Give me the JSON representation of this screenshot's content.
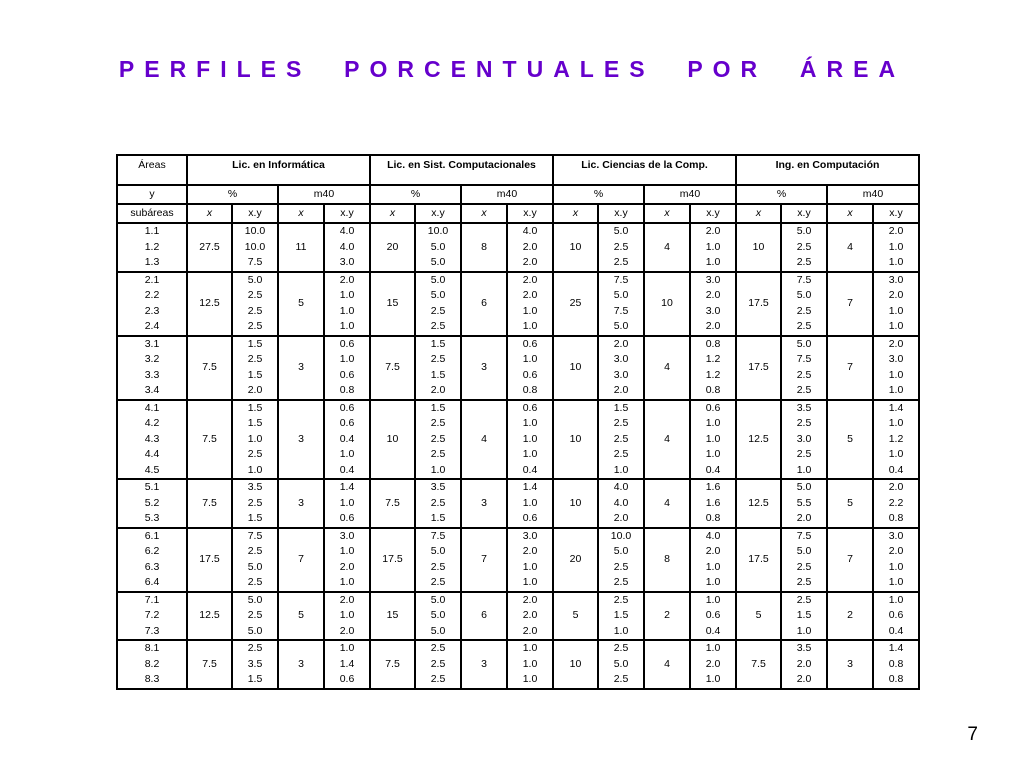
{
  "title": "PERFILES  PORCENTUALES  POR  ÁREA",
  "page_number": "7",
  "table": {
    "corner": [
      "Áreas",
      "y",
      "subáreas"
    ],
    "programs": [
      "Lic. en Informática",
      "Lic. en Sist. Computacionales",
      "Lic. Ciencias de la Comp.",
      "Ing. en Computación"
    ],
    "sub_headers": [
      "%",
      "m40"
    ],
    "column_labels": [
      "x",
      "x.y"
    ],
    "groups": [
      {
        "subareas": [
          "1.1",
          "1.2",
          "1.3"
        ],
        "programs": [
          {
            "pct_x": "27.5",
            "pct_xy": [
              "10.0",
              "10.0",
              "7.5"
            ],
            "m40_x": "11",
            "m40_xy": [
              "4.0",
              "4.0",
              "3.0"
            ]
          },
          {
            "pct_x": "20",
            "pct_xy": [
              "10.0",
              "5.0",
              "5.0"
            ],
            "m40_x": "8",
            "m40_xy": [
              "4.0",
              "2.0",
              "2.0"
            ]
          },
          {
            "pct_x": "10",
            "pct_xy": [
              "5.0",
              "2.5",
              "2.5"
            ],
            "m40_x": "4",
            "m40_xy": [
              "2.0",
              "1.0",
              "1.0"
            ]
          },
          {
            "pct_x": "10",
            "pct_xy": [
              "5.0",
              "2.5",
              "2.5"
            ],
            "m40_x": "4",
            "m40_xy": [
              "2.0",
              "1.0",
              "1.0"
            ]
          }
        ]
      },
      {
        "subareas": [
          "2.1",
          "2.2",
          "2.3",
          "2.4"
        ],
        "programs": [
          {
            "pct_x": "12.5",
            "pct_xy": [
              "5.0",
              "2.5",
              "2.5",
              "2.5"
            ],
            "m40_x": "5",
            "m40_xy": [
              "2.0",
              "1.0",
              "1.0",
              "1.0"
            ]
          },
          {
            "pct_x": "15",
            "pct_xy": [
              "5.0",
              "5.0",
              "2.5",
              "2.5"
            ],
            "m40_x": "6",
            "m40_xy": [
              "2.0",
              "2.0",
              "1.0",
              "1.0"
            ]
          },
          {
            "pct_x": "25",
            "pct_xy": [
              "7.5",
              "5.0",
              "7.5",
              "5.0"
            ],
            "m40_x": "10",
            "m40_xy": [
              "3.0",
              "2.0",
              "3.0",
              "2.0"
            ]
          },
          {
            "pct_x": "17.5",
            "pct_xy": [
              "7.5",
              "5.0",
              "2.5",
              "2.5"
            ],
            "m40_x": "7",
            "m40_xy": [
              "3.0",
              "2.0",
              "1.0",
              "1.0"
            ]
          }
        ]
      },
      {
        "subareas": [
          "3.1",
          "3.2",
          "3.3",
          "3.4"
        ],
        "programs": [
          {
            "pct_x": "7.5",
            "pct_xy": [
              "1.5",
              "2.5",
              "1.5",
              "2.0"
            ],
            "m40_x": "3",
            "m40_xy": [
              "0.6",
              "1.0",
              "0.6",
              "0.8"
            ]
          },
          {
            "pct_x": "7.5",
            "pct_xy": [
              "1.5",
              "2.5",
              "1.5",
              "2.0"
            ],
            "m40_x": "3",
            "m40_xy": [
              "0.6",
              "1.0",
              "0.6",
              "0.8"
            ]
          },
          {
            "pct_x": "10",
            "pct_xy": [
              "2.0",
              "3.0",
              "3.0",
              "2.0"
            ],
            "m40_x": "4",
            "m40_xy": [
              "0.8",
              "1.2",
              "1.2",
              "0.8"
            ]
          },
          {
            "pct_x": "17.5",
            "pct_xy": [
              "5.0",
              "7.5",
              "2.5",
              "2.5"
            ],
            "m40_x": "7",
            "m40_xy": [
              "2.0",
              "3.0",
              "1.0",
              "1.0"
            ]
          }
        ]
      },
      {
        "subareas": [
          "4.1",
          "4.2",
          "4.3",
          "4.4",
          "4.5"
        ],
        "programs": [
          {
            "pct_x": "7.5",
            "pct_xy": [
              "1.5",
              "1.5",
              "1.0",
              "2.5",
              "1.0"
            ],
            "m40_x": "3",
            "m40_xy": [
              "0.6",
              "0.6",
              "0.4",
              "1.0",
              "0.4"
            ]
          },
          {
            "pct_x": "10",
            "pct_xy": [
              "1.5",
              "2.5",
              "2.5",
              "2.5",
              "1.0"
            ],
            "m40_x": "4",
            "m40_xy": [
              "0.6",
              "1.0",
              "1.0",
              "1.0",
              "0.4"
            ]
          },
          {
            "pct_x": "10",
            "pct_xy": [
              "1.5",
              "2.5",
              "2.5",
              "2.5",
              "1.0"
            ],
            "m40_x": "4",
            "m40_xy": [
              "0.6",
              "1.0",
              "1.0",
              "1.0",
              "0.4"
            ]
          },
          {
            "pct_x": "12.5",
            "pct_xy": [
              "3.5",
              "2.5",
              "3.0",
              "2.5",
              "1.0"
            ],
            "m40_x": "5",
            "m40_xy": [
              "1.4",
              "1.0",
              "1.2",
              "1.0",
              "0.4"
            ]
          }
        ]
      },
      {
        "subareas": [
          "5.1",
          "5.2",
          "5.3"
        ],
        "programs": [
          {
            "pct_x": "7.5",
            "pct_xy": [
              "3.5",
              "2.5",
              "1.5"
            ],
            "m40_x": "3",
            "m40_xy": [
              "1.4",
              "1.0",
              "0.6"
            ]
          },
          {
            "pct_x": "7.5",
            "pct_xy": [
              "3.5",
              "2.5",
              "1.5"
            ],
            "m40_x": "3",
            "m40_xy": [
              "1.4",
              "1.0",
              "0.6"
            ]
          },
          {
            "pct_x": "10",
            "pct_xy": [
              "4.0",
              "4.0",
              "2.0"
            ],
            "m40_x": "4",
            "m40_xy": [
              "1.6",
              "1.6",
              "0.8"
            ]
          },
          {
            "pct_x": "12.5",
            "pct_xy": [
              "5.0",
              "5.5",
              "2.0"
            ],
            "m40_x": "5",
            "m40_xy": [
              "2.0",
              "2.2",
              "0.8"
            ]
          }
        ]
      },
      {
        "subareas": [
          "6.1",
          "6.2",
          "6.3",
          "6.4"
        ],
        "programs": [
          {
            "pct_x": "17.5",
            "pct_xy": [
              "7.5",
              "2.5",
              "5.0",
              "2.5"
            ],
            "m40_x": "7",
            "m40_xy": [
              "3.0",
              "1.0",
              "2.0",
              "1.0"
            ]
          },
          {
            "pct_x": "17.5",
            "pct_xy": [
              "7.5",
              "5.0",
              "2.5",
              "2.5"
            ],
            "m40_x": "7",
            "m40_xy": [
              "3.0",
              "2.0",
              "1.0",
              "1.0"
            ]
          },
          {
            "pct_x": "20",
            "pct_xy": [
              "10.0",
              "5.0",
              "2.5",
              "2.5"
            ],
            "m40_x": "8",
            "m40_xy": [
              "4.0",
              "2.0",
              "1.0",
              "1.0"
            ]
          },
          {
            "pct_x": "17.5",
            "pct_xy": [
              "7.5",
              "5.0",
              "2.5",
              "2.5"
            ],
            "m40_x": "7",
            "m40_xy": [
              "3.0",
              "2.0",
              "1.0",
              "1.0"
            ]
          }
        ]
      },
      {
        "subareas": [
          "7.1",
          "7.2",
          "7.3"
        ],
        "programs": [
          {
            "pct_x": "12.5",
            "pct_xy": [
              "5.0",
              "2.5",
              "5.0"
            ],
            "m40_x": "5",
            "m40_xy": [
              "2.0",
              "1.0",
              "2.0"
            ]
          },
          {
            "pct_x": "15",
            "pct_xy": [
              "5.0",
              "5.0",
              "5.0"
            ],
            "m40_x": "6",
            "m40_xy": [
              "2.0",
              "2.0",
              "2.0"
            ]
          },
          {
            "pct_x": "5",
            "pct_xy": [
              "2.5",
              "1.5",
              "1.0"
            ],
            "m40_x": "2",
            "m40_xy": [
              "1.0",
              "0.6",
              "0.4"
            ]
          },
          {
            "pct_x": "5",
            "pct_xy": [
              "2.5",
              "1.5",
              "1.0"
            ],
            "m40_x": "2",
            "m40_xy": [
              "1.0",
              "0.6",
              "0.4"
            ]
          }
        ]
      },
      {
        "subareas": [
          "8.1",
          "8.2",
          "8.3"
        ],
        "programs": [
          {
            "pct_x": "7.5",
            "pct_xy": [
              "2.5",
              "3.5",
              "1.5"
            ],
            "m40_x": "3",
            "m40_xy": [
              "1.0",
              "1.4",
              "0.6"
            ]
          },
          {
            "pct_x": "7.5",
            "pct_xy": [
              "2.5",
              "2.5",
              "2.5"
            ],
            "m40_x": "3",
            "m40_xy": [
              "1.0",
              "1.0",
              "1.0"
            ]
          },
          {
            "pct_x": "10",
            "pct_xy": [
              "2.5",
              "5.0",
              "2.5"
            ],
            "m40_x": "4",
            "m40_xy": [
              "1.0",
              "2.0",
              "1.0"
            ]
          },
          {
            "pct_x": "7.5",
            "pct_xy": [
              "3.5",
              "2.0",
              "2.0"
            ],
            "m40_x": "3",
            "m40_xy": [
              "1.4",
              "0.8",
              "0.8"
            ]
          }
        ]
      }
    ]
  }
}
